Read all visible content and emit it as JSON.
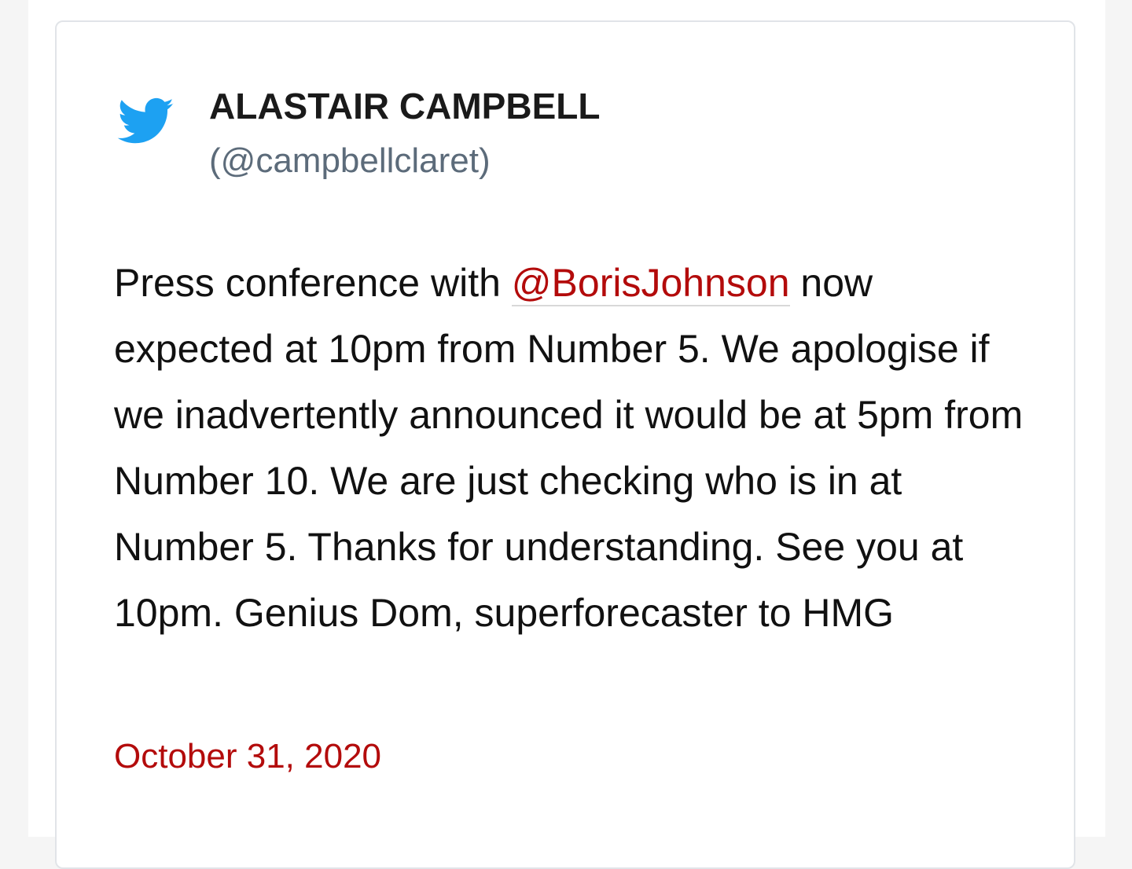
{
  "tweet": {
    "icon": "twitter-bird-icon",
    "author_name": "ALASTAIR CAMPBELL",
    "author_handle": "(@campbellclaret)",
    "text_before_mention": "Press conference with ",
    "mention": "@BorisJohnson",
    "text_after_mention": " now expected at 10pm from Number 5. We apologise if we inadvertently announced it would be at 5pm from Number 10. We are just checking who is in at Number 5. Thanks for understanding. See you at 10pm. Genius Dom, superforecaster to HMG",
    "date": "October 31, 2020"
  },
  "colors": {
    "twitter_blue": "#1da1f2",
    "link_red": "#b30b0b",
    "handle_gray": "#5c6b7a"
  }
}
